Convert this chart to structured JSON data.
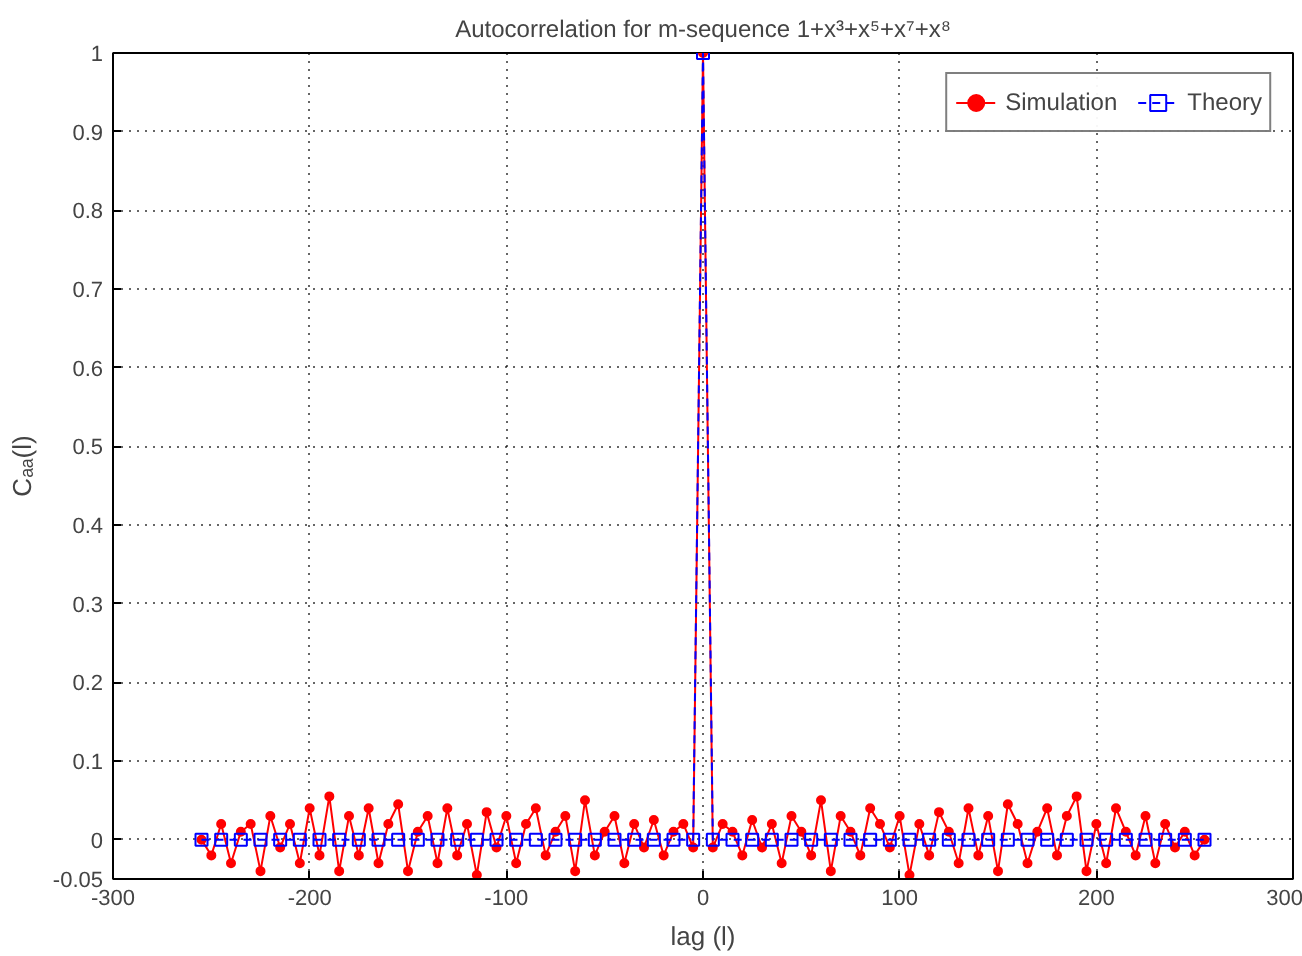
{
  "chart_data": {
    "type": "line",
    "title": "Autocorrelation for m-sequence 1+x³+x⁵+x⁷+x⁸",
    "xlabel": "lag (l)",
    "ylabel": "Cₐₐ(l)",
    "xlim": [
      -300,
      300
    ],
    "ylim": [
      -0.05,
      1
    ],
    "xticks": [
      -300,
      -200,
      -100,
      0,
      100,
      200,
      300
    ],
    "yticks": [
      -0.05,
      0,
      0.1,
      0.2,
      0.3,
      0.4,
      0.5,
      0.6,
      0.7,
      0.8,
      0.9,
      1
    ],
    "grid": true,
    "legend": "top right",
    "series": [
      {
        "name": "Simulation",
        "color": "#ff0000",
        "marker": "circle",
        "line_style": "solid",
        "x": [
          -255,
          -250,
          -245,
          -240,
          -235,
          -230,
          -225,
          -220,
          -215,
          -210,
          -205,
          -200,
          -195,
          -190,
          -185,
          -180,
          -175,
          -170,
          -165,
          -160,
          -155,
          -150,
          -145,
          -140,
          -135,
          -130,
          -125,
          -120,
          -115,
          -110,
          -105,
          -100,
          -95,
          -90,
          -85,
          -80,
          -75,
          -70,
          -65,
          -60,
          -55,
          -50,
          -45,
          -40,
          -35,
          -30,
          -25,
          -20,
          -15,
          -10,
          -5,
          0,
          5,
          10,
          15,
          20,
          25,
          30,
          35,
          40,
          45,
          50,
          55,
          60,
          65,
          70,
          75,
          80,
          85,
          90,
          95,
          100,
          105,
          110,
          115,
          120,
          125,
          130,
          135,
          140,
          145,
          150,
          155,
          160,
          165,
          170,
          175,
          180,
          185,
          190,
          195,
          200,
          205,
          210,
          215,
          220,
          225,
          230,
          235,
          240,
          245,
          250,
          255
        ],
        "values": [
          0.0,
          -0.02,
          0.02,
          -0.03,
          0.01,
          0.02,
          -0.04,
          0.03,
          -0.01,
          0.02,
          -0.03,
          0.04,
          -0.02,
          0.055,
          -0.04,
          0.03,
          -0.02,
          0.04,
          -0.03,
          0.02,
          0.045,
          -0.04,
          0.01,
          0.03,
          -0.03,
          0.04,
          -0.02,
          0.02,
          -0.045,
          0.035,
          -0.01,
          0.03,
          -0.03,
          0.02,
          0.04,
          -0.02,
          0.01,
          0.03,
          -0.04,
          0.05,
          -0.02,
          0.01,
          0.03,
          -0.03,
          0.02,
          -0.01,
          0.025,
          -0.02,
          0.01,
          0.02,
          -0.01,
          1,
          -0.01,
          0.02,
          0.01,
          -0.02,
          0.025,
          -0.01,
          0.02,
          -0.03,
          0.03,
          0.01,
          -0.02,
          0.05,
          -0.04,
          0.03,
          0.01,
          -0.02,
          0.04,
          0.02,
          -0.01,
          0.03,
          -0.045,
          0.02,
          -0.02,
          0.035,
          0.01,
          -0.03,
          0.04,
          -0.02,
          0.03,
          -0.04,
          0.045,
          0.02,
          -0.03,
          0.01,
          0.04,
          -0.02,
          0.03,
          0.055,
          -0.04,
          0.02,
          -0.03,
          0.04,
          0.01,
          -0.02,
          0.03,
          -0.03,
          0.02,
          -0.01,
          0.01,
          -0.02,
          0.0
        ]
      },
      {
        "name": "Theory",
        "color": "#0000ff",
        "marker": "square",
        "line_style": "dashed",
        "x": [
          -255,
          -245,
          -235,
          -225,
          -215,
          -205,
          -195,
          -185,
          -175,
          -165,
          -155,
          -145,
          -135,
          -125,
          -115,
          -105,
          -95,
          -85,
          -75,
          -65,
          -55,
          -45,
          -35,
          -25,
          -15,
          -5,
          0,
          5,
          15,
          25,
          35,
          45,
          55,
          65,
          75,
          85,
          95,
          105,
          115,
          125,
          135,
          145,
          155,
          165,
          175,
          185,
          195,
          205,
          215,
          225,
          235,
          245,
          255
        ],
        "values": [
          0,
          0,
          0,
          0,
          0,
          0,
          0,
          0,
          0,
          0,
          0,
          0,
          0,
          0,
          0,
          0,
          0,
          0,
          0,
          0,
          0,
          0,
          0,
          0,
          0,
          0,
          1,
          0,
          0,
          0,
          0,
          0,
          0,
          0,
          0,
          0,
          0,
          0,
          0,
          0,
          0,
          0,
          0,
          0,
          0,
          0,
          0,
          0,
          0,
          0,
          0,
          0,
          0
        ]
      }
    ]
  }
}
